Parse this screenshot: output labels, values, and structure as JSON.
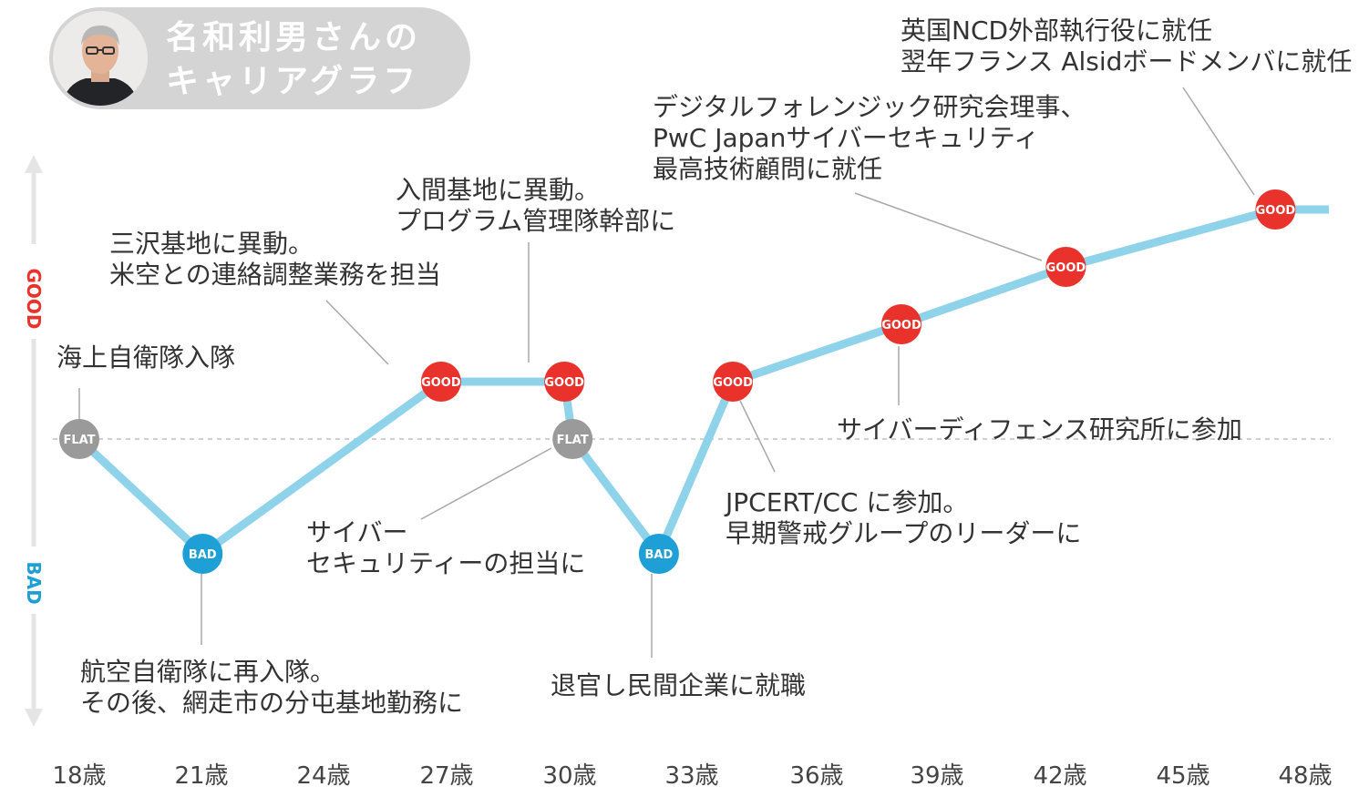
{
  "header": {
    "title_line1": "名和利男さんの",
    "title_line2": "キャリアグラフ"
  },
  "colors": {
    "good": "#e8322b",
    "bad": "#1e9fd6",
    "flat": "#9a9a9a",
    "line": "#8fd3ea",
    "axis": "#e5e5e5"
  },
  "chart_data": {
    "type": "line",
    "x_ticks": [
      "18歳",
      "21歳",
      "24歳",
      "27歳",
      "30歳",
      "33歳",
      "36歳",
      "39歳",
      "42歳",
      "45歳",
      "48歳"
    ],
    "x_range": [
      18,
      48
    ],
    "y_levels": {
      "GOOD": "GOOD",
      "BAD": "BAD"
    },
    "points": [
      {
        "age": 18,
        "level": 0,
        "label": "FLAT",
        "state": "flat"
      },
      {
        "age": 21,
        "level": -2,
        "label": "BAD",
        "state": "bad"
      },
      {
        "age": 26.8,
        "level": 1,
        "label": "GOOD",
        "state": "good"
      },
      {
        "age": 29.8,
        "level": 1,
        "label": "GOOD",
        "state": "good"
      },
      {
        "age": 30,
        "level": 0,
        "label": "FLAT",
        "state": "flat"
      },
      {
        "age": 32.1,
        "level": -2,
        "label": "BAD",
        "state": "bad"
      },
      {
        "age": 33.9,
        "level": 1,
        "label": "GOOD",
        "state": "good"
      },
      {
        "age": 38,
        "level": 2,
        "label": "GOOD",
        "state": "good"
      },
      {
        "age": 42,
        "level": 3,
        "label": "GOOD",
        "state": "good"
      },
      {
        "age": 47.1,
        "level": 4,
        "label": "GOOD",
        "state": "good"
      }
    ],
    "line_end": {
      "age": 48.4,
      "level": 4
    },
    "annotations": [
      {
        "text": [
          "海上自衛隊入隊"
        ]
      },
      {
        "text": [
          "航空自衛隊に再入隊。",
          "その後、網走市の分屯基地勤務に"
        ]
      },
      {
        "text": [
          "三沢基地に異動。",
          "米空との連絡調整業務を担当"
        ]
      },
      {
        "text": [
          "入間基地に異動。",
          "プログラム管理隊幹部に"
        ]
      },
      {
        "text": [
          "サイバー",
          "セキュリティーの担当に"
        ]
      },
      {
        "text": [
          "退官し民間企業に就職"
        ]
      },
      {
        "text": [
          "JPCERT/CC に参加。",
          "早期警戒グループのリーダーに"
        ]
      },
      {
        "text": [
          "サイバーディフェンス研究所に参加"
        ]
      },
      {
        "text": [
          "デジタルフォレンジック研究会理事、",
          "PwC Japanサイバーセキュリティ",
          "最高技術顧問に就任"
        ]
      },
      {
        "text": [
          "英国NCD外部執行役に就任",
          "翌年フランス Alsidボードメンバに就任"
        ]
      }
    ]
  }
}
